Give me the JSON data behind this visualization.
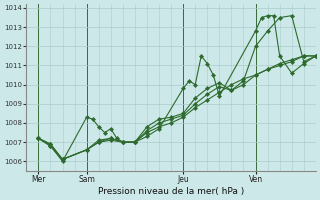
{
  "bg_color": "#cce8e8",
  "grid_color": "#aacccc",
  "line_color": "#2d6a2d",
  "marker_color": "#2d6a2d",
  "title": "Pression niveau de la mer( hPa )",
  "ylim": [
    1005.5,
    1014.2
  ],
  "yticks": [
    1006,
    1007,
    1008,
    1009,
    1010,
    1011,
    1012,
    1013,
    1014
  ],
  "xlim": [
    0,
    96
  ],
  "day_ticks": [
    4,
    20,
    52,
    76
  ],
  "day_labels": [
    "Mer",
    "Sam",
    "Jeu",
    "Ven"
  ],
  "day_vlines": [
    4,
    20,
    52,
    76
  ],
  "series1_x": [
    4,
    8,
    12,
    20,
    22,
    24,
    26,
    28,
    30,
    32,
    36,
    40,
    44,
    52,
    54,
    56,
    58,
    60,
    62,
    64,
    76,
    78,
    80,
    82,
    84,
    88,
    92,
    96
  ],
  "series1_y": [
    1007.2,
    1006.8,
    1006.0,
    1008.3,
    1008.2,
    1007.8,
    1007.5,
    1007.7,
    1007.2,
    1007.0,
    1007.0,
    1007.3,
    1007.7,
    1009.8,
    1010.2,
    1010.0,
    1011.5,
    1011.1,
    1010.5,
    1009.4,
    1012.8,
    1013.5,
    1013.6,
    1013.6,
    1011.5,
    1010.6,
    1011.1,
    1011.5
  ],
  "series2_x": [
    4,
    8,
    12,
    20,
    24,
    28,
    32,
    36,
    40,
    44,
    48,
    52,
    56,
    60,
    64,
    68,
    72,
    76,
    80,
    84,
    88,
    92,
    96
  ],
  "series2_y": [
    1007.2,
    1006.8,
    1006.1,
    1006.6,
    1007.0,
    1007.2,
    1007.0,
    1007.0,
    1007.5,
    1007.8,
    1008.0,
    1008.3,
    1008.8,
    1009.2,
    1009.6,
    1010.0,
    1010.3,
    1010.5,
    1010.8,
    1011.0,
    1011.2,
    1011.5,
    1011.5
  ],
  "series3_x": [
    4,
    8,
    12,
    20,
    24,
    28,
    32,
    36,
    40,
    44,
    48,
    52,
    56,
    60,
    64,
    68,
    72,
    76,
    80,
    84,
    88,
    92,
    96
  ],
  "series3_y": [
    1007.2,
    1006.9,
    1006.1,
    1006.6,
    1007.1,
    1007.2,
    1007.0,
    1007.0,
    1007.8,
    1008.2,
    1008.3,
    1008.5,
    1009.3,
    1009.8,
    1010.1,
    1009.7,
    1010.2,
    1012.0,
    1012.8,
    1013.5,
    1013.6,
    1011.2,
    1011.5
  ],
  "series4_x": [
    4,
    8,
    12,
    20,
    24,
    28,
    32,
    36,
    40,
    44,
    48,
    52,
    56,
    60,
    64,
    68,
    72,
    76,
    80,
    84,
    88,
    92,
    96
  ],
  "series4_y": [
    1007.2,
    1006.9,
    1006.1,
    1006.6,
    1007.0,
    1007.1,
    1007.0,
    1007.0,
    1007.6,
    1008.0,
    1008.2,
    1008.4,
    1009.0,
    1009.5,
    1009.9,
    1009.7,
    1010.0,
    1010.5,
    1010.8,
    1011.1,
    1011.3,
    1011.5,
    1011.5
  ]
}
